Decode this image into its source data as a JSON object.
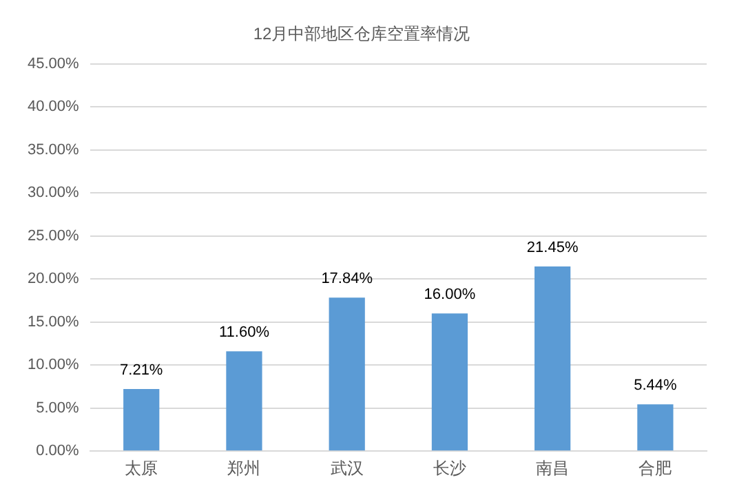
{
  "chart_data": {
    "type": "bar",
    "title": "12月中部地区仓库空置率情况",
    "categories": [
      "太原",
      "郑州",
      "武汉",
      "长沙",
      "南昌",
      "合肥"
    ],
    "values": [
      7.21,
      11.6,
      17.84,
      16.0,
      21.45,
      5.44
    ],
    "value_labels": [
      "7.21%",
      "11.60%",
      "17.84%",
      "16.00%",
      "21.45%",
      "5.44%"
    ],
    "color": "#5b9bd5",
    "ylim": [
      0,
      45
    ],
    "yticks": [
      {
        "value": 0,
        "label": "0.00%"
      },
      {
        "value": 5,
        "label": "5.00%"
      },
      {
        "value": 10,
        "label": "10.00%"
      },
      {
        "value": 15,
        "label": "15.00%"
      },
      {
        "value": 20,
        "label": "20.00%"
      },
      {
        "value": 25,
        "label": "25.00%"
      },
      {
        "value": 30,
        "label": "30.00%"
      },
      {
        "value": 35,
        "label": "35.00%"
      },
      {
        "value": 40,
        "label": "40.00%"
      },
      {
        "value": 45,
        "label": "45.00%"
      }
    ],
    "grid": "y",
    "legend": false
  }
}
